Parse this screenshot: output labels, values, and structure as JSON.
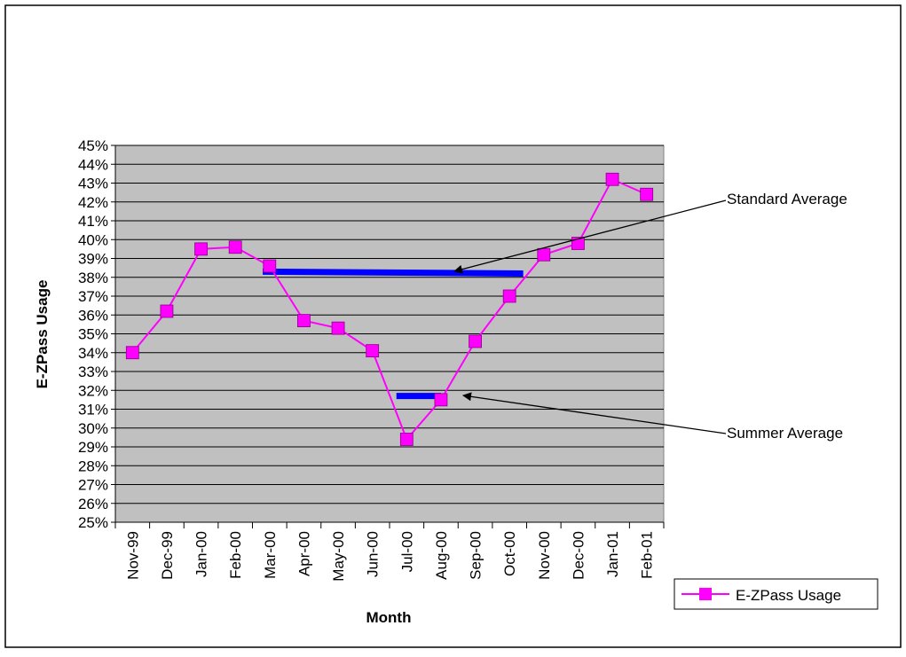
{
  "chart_data": {
    "type": "line",
    "xlabel": "Month",
    "ylabel": "E-ZPass Usage",
    "categories": [
      "Nov-99",
      "Dec-99",
      "Jan-00",
      "Feb-00",
      "Mar-00",
      "Apr-00",
      "May-00",
      "Jun-00",
      "Jul-00",
      "Aug-00",
      "Sep-00",
      "Oct-00",
      "Nov-00",
      "Dec-00",
      "Jan-01",
      "Feb-01"
    ],
    "ylim": [
      0.25,
      0.45
    ],
    "y_tick_labels": [
      "25%",
      "26%",
      "27%",
      "28%",
      "29%",
      "30%",
      "31%",
      "32%",
      "33%",
      "34%",
      "35%",
      "36%",
      "37%",
      "38%",
      "39%",
      "40%",
      "41%",
      "42%",
      "43%",
      "44%",
      "45%"
    ],
    "grid": true,
    "plot_background": "#c0c0c0",
    "series": [
      {
        "name": "E-ZPass Usage",
        "color": "#ff00ff",
        "marker": "square",
        "values": [
          0.34,
          0.362,
          0.395,
          0.396,
          0.386,
          0.357,
          0.353,
          0.341,
          0.294,
          0.315,
          0.346,
          0.37,
          0.392,
          0.398,
          0.432,
          0.424
        ]
      }
    ],
    "reference_lines": [
      {
        "label": "Standard Average",
        "color": "#0000ff",
        "x_start": 4.3,
        "x_end": 11.9,
        "y_start": 0.383,
        "y_end": 0.382
      },
      {
        "label": "Summer Average",
        "color": "#0000ff",
        "x_start": 8.2,
        "x_end": 9.5,
        "y_start": 0.317,
        "y_end": 0.317
      }
    ],
    "annotations": [
      {
        "text": "Standard Average",
        "points_to": "Standard Average"
      },
      {
        "text": "Summer Average",
        "points_to": "Summer Average"
      }
    ],
    "legend": {
      "position": "bottom-right",
      "entries": [
        "E-ZPass Usage"
      ]
    }
  }
}
